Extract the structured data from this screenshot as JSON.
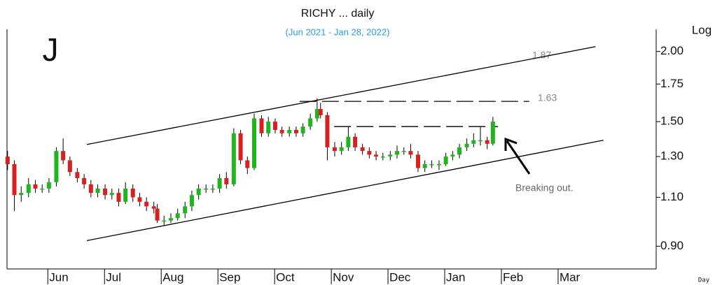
{
  "chart_data": {
    "type": "candlestick",
    "title": "RICHY ... daily",
    "subtitle": "(Jun 2021 - Jan 28, 2022)",
    "corner_label": "J",
    "scale_label": "Log",
    "period_label": "Day",
    "log_scale": true,
    "up_color": "#1fb51f",
    "down_color": "#d92020",
    "xlim": [
      -0.72,
      10.73
    ],
    "ylim": [
      0.82,
      2.19
    ],
    "xticks": [
      {
        "value": 0,
        "label": "Jun"
      },
      {
        "value": 1,
        "label": "Jul"
      },
      {
        "value": 2,
        "label": "Aug"
      },
      {
        "value": 3,
        "label": "Sep"
      },
      {
        "value": 4,
        "label": "Oct"
      },
      {
        "value": 5,
        "label": "Nov"
      },
      {
        "value": 6,
        "label": "Dec"
      },
      {
        "value": 7,
        "label": "Jan"
      },
      {
        "value": 8,
        "label": "Feb"
      },
      {
        "value": 9,
        "label": "Mar"
      }
    ],
    "yticks": [
      {
        "value": 0.9,
        "label": "0.90"
      },
      {
        "value": 1.1,
        "label": "1.10"
      },
      {
        "value": 1.3,
        "label": "1.30"
      },
      {
        "value": 1.5,
        "label": "1.50"
      },
      {
        "value": 1.75,
        "label": "1.75"
      },
      {
        "value": 2,
        "label": "2.00"
      }
    ],
    "x": [
      -0.71,
      -0.59,
      -0.47,
      -0.34,
      -0.22,
      -0.1,
      0.02,
      0.15,
      0.27,
      0.39,
      0.52,
      0.64,
      0.76,
      0.88,
      1.01,
      1.13,
      1.25,
      1.37,
      1.5,
      1.62,
      1.74,
      1.87,
      1.93,
      2.05,
      2.17,
      2.29,
      2.42,
      2.54,
      2.66,
      2.79,
      2.91,
      3.03,
      3.15,
      3.28,
      3.4,
      3.52,
      3.64,
      3.77,
      3.89,
      4.01,
      4.13,
      4.26,
      4.38,
      4.5,
      4.63,
      4.75,
      4.81,
      4.93,
      5.06,
      5.18,
      5.3,
      5.42,
      5.55,
      5.67,
      5.79,
      5.91,
      6.04,
      6.16,
      6.28,
      6.4,
      6.53,
      6.65,
      6.77,
      6.9,
      7.02,
      7.14,
      7.26,
      7.39,
      7.51,
      7.63,
      7.75,
      7.85
    ],
    "open": [
      1.3,
      1.26,
      1.11,
      1.12,
      1.16,
      1.14,
      1.14,
      1.17,
      1.33,
      1.28,
      1.22,
      1.19,
      1.16,
      1.12,
      1.14,
      1.11,
      1.12,
      1.08,
      1.14,
      1.1,
      1.08,
      1.06,
      1.05,
      1.0,
      1.0,
      1.01,
      1.03,
      1.06,
      1.11,
      1.14,
      1.14,
      1.14,
      1.19,
      1.16,
      1.43,
      1.28,
      1.24,
      1.52,
      1.43,
      1.5,
      1.45,
      1.43,
      1.45,
      1.43,
      1.47,
      1.52,
      1.58,
      1.54,
      1.35,
      1.33,
      1.35,
      1.41,
      1.35,
      1.33,
      1.31,
      1.3,
      1.3,
      1.31,
      1.33,
      1.33,
      1.31,
      1.24,
      1.26,
      1.26,
      1.26,
      1.3,
      1.31,
      1.35,
      1.37,
      1.39,
      1.39,
      1.37
    ],
    "high": [
      1.33,
      1.28,
      1.15,
      1.19,
      1.18,
      1.16,
      1.19,
      1.35,
      1.4,
      1.3,
      1.24,
      1.21,
      1.18,
      1.16,
      1.16,
      1.14,
      1.14,
      1.17,
      1.16,
      1.12,
      1.1,
      1.08,
      1.07,
      1.02,
      1.03,
      1.05,
      1.08,
      1.13,
      1.16,
      1.16,
      1.16,
      1.21,
      1.22,
      1.46,
      1.45,
      1.3,
      1.55,
      1.54,
      1.53,
      1.52,
      1.47,
      1.47,
      1.47,
      1.49,
      1.55,
      1.65,
      1.62,
      1.56,
      1.38,
      1.38,
      1.47,
      1.43,
      1.37,
      1.35,
      1.33,
      1.32,
      1.33,
      1.36,
      1.35,
      1.37,
      1.33,
      1.28,
      1.28,
      1.28,
      1.32,
      1.33,
      1.37,
      1.4,
      1.43,
      1.47,
      1.41,
      1.53
    ],
    "low": [
      1.23,
      1.04,
      1.08,
      1.1,
      1.12,
      1.12,
      1.12,
      1.15,
      1.26,
      1.2,
      1.17,
      1.14,
      1.1,
      1.1,
      1.09,
      1.09,
      1.06,
      1.07,
      1.08,
      1.06,
      1.04,
      1.03,
      0.99,
      0.98,
      0.99,
      1.0,
      1.01,
      1.04,
      1.09,
      1.12,
      1.12,
      1.12,
      1.14,
      1.15,
      1.26,
      1.21,
      1.23,
      1.41,
      1.41,
      1.43,
      1.41,
      1.41,
      1.41,
      1.41,
      1.45,
      1.5,
      1.52,
      1.28,
      1.3,
      1.31,
      1.33,
      1.33,
      1.31,
      1.29,
      1.28,
      1.28,
      1.28,
      1.29,
      1.31,
      1.29,
      1.22,
      1.22,
      1.24,
      1.23,
      1.25,
      1.28,
      1.29,
      1.33,
      1.35,
      1.36,
      1.34,
      1.36
    ],
    "close": [
      1.26,
      1.11,
      1.12,
      1.16,
      1.14,
      1.14,
      1.17,
      1.33,
      1.28,
      1.22,
      1.19,
      1.16,
      1.12,
      1.14,
      1.11,
      1.12,
      1.08,
      1.14,
      1.1,
      1.08,
      1.06,
      1.05,
      1.0,
      1.0,
      1.01,
      1.03,
      1.06,
      1.11,
      1.14,
      1.14,
      1.14,
      1.19,
      1.16,
      1.43,
      1.28,
      1.24,
      1.52,
      1.43,
      1.5,
      1.45,
      1.43,
      1.45,
      1.43,
      1.47,
      1.52,
      1.58,
      1.54,
      1.35,
      1.33,
      1.35,
      1.41,
      1.35,
      1.33,
      1.31,
      1.3,
      1.3,
      1.31,
      1.33,
      1.33,
      1.31,
      1.24,
      1.26,
      1.26,
      1.26,
      1.3,
      1.31,
      1.35,
      1.37,
      1.39,
      1.39,
      1.37,
      1.5
    ],
    "lines": [
      {
        "x": [
          0.69,
          9.66
        ],
        "y": [
          1.366,
          2.04
        ],
        "dashed": false
      },
      {
        "x": [
          0.69,
          9.8
        ],
        "y": [
          0.921,
          1.39
        ],
        "dashed": false
      },
      {
        "x": [
          4.44,
          8.49
        ],
        "y": [
          1.63,
          1.63
        ],
        "dashed": true
      },
      {
        "x": [
          5.05,
          7.94
        ],
        "y": [
          1.47,
          1.47
        ],
        "dashed": true
      }
    ],
    "annotations": [
      "1.87",
      "1.63",
      "Breaking out."
    ]
  }
}
